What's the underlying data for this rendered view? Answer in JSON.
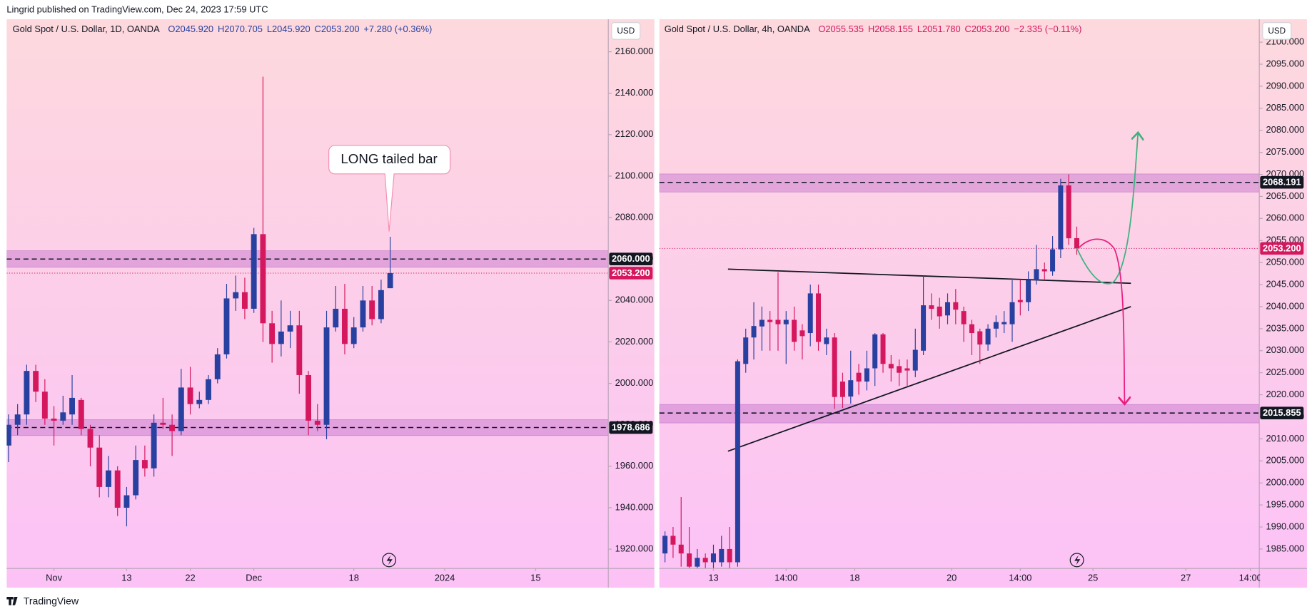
{
  "header": "Lingrid published on TradingView.com, Dec 24, 2023 17:59 UTC",
  "footer": "TradingView",
  "chart_data": [
    {
      "type": "candlestick",
      "title": "Gold Spot / U.S. Dollar, 1D, OANDA",
      "ohlc_text": [
        "O2045.920",
        "H2070.705",
        "L2045.920",
        "C2053.200",
        "+7.280 (+0.36%)"
      ],
      "currency": "USD",
      "up_color": "#2841a0",
      "down_color": "#d5175e",
      "open": [
        1970,
        1980,
        1985,
        2006,
        1996,
        1983,
        1982,
        1985,
        1992,
        1978,
        1969,
        1950,
        1958,
        1940,
        1946,
        1963,
        1959,
        1981,
        1980,
        1977,
        1998,
        1990,
        1992,
        2002,
        2014,
        2041,
        2044,
        2036,
        2072,
        2029,
        2019,
        2025,
        2028,
        2004,
        1982,
        1980,
        2027,
        2036,
        2019,
        2027,
        2040,
        2031,
        2045.92
      ],
      "high": [
        1985,
        1990,
        2009,
        2009,
        2002,
        1989,
        1994,
        2004,
        1993,
        1980,
        1975,
        1965,
        1960,
        1950,
        1970,
        1970,
        1985,
        1993,
        1985,
        2007,
        2008,
        1996,
        2004,
        2017,
        2048,
        2052,
        2051,
        2075,
        2148,
        2035,
        2040,
        2035,
        2035,
        2006,
        1990,
        2035,
        2047,
        2048,
        2032,
        2047,
        2047,
        2050,
        2070.705
      ],
      "low": [
        1962,
        1975,
        1980,
        1991,
        1980,
        1970,
        1980,
        1980,
        1975,
        1960,
        1945,
        1945,
        1936,
        1931,
        1944,
        1955,
        1955,
        1978,
        1965,
        1975,
        1985,
        1988,
        1990,
        2000,
        2012,
        2035,
        2031,
        2034,
        2020,
        2010,
        2013,
        2017,
        1995,
        1975,
        1977,
        1973,
        2025,
        2014,
        2017,
        2025,
        2028,
        2029,
        2045.92
      ],
      "close": [
        1980,
        1985,
        2006,
        1996,
        1983,
        1982,
        1986,
        1993,
        1978,
        1969,
        1950,
        1958,
        1940,
        1946,
        1963,
        1959,
        1981,
        1980,
        1977,
        1998,
        1990,
        1992,
        2002,
        2014,
        2041,
        2044,
        2036,
        2072,
        2029,
        2019,
        2025,
        2028,
        2004,
        1982,
        1980,
        2027,
        2036,
        2019,
        2027,
        2040,
        2031,
        2045,
        2053.2
      ],
      "xlim": [
        -0.2,
        66
      ],
      "xticks": [
        {
          "value": 5,
          "label": "Nov"
        },
        {
          "value": 13,
          "label": "13"
        },
        {
          "value": 20,
          "label": "22"
        },
        {
          "value": 27,
          "label": "Dec"
        },
        {
          "value": 38,
          "label": "18"
        },
        {
          "value": 48,
          "label": "2024"
        },
        {
          "value": 58,
          "label": "15"
        }
      ],
      "ylim": [
        1910.7,
        2175.7
      ],
      "yticks": [
        {
          "value": 1920,
          "label": "1920.000"
        },
        {
          "value": 1940,
          "label": "1940.000"
        },
        {
          "value": 1960,
          "label": "1960.000"
        },
        {
          "value": 1980,
          "label": "1980.000"
        },
        {
          "value": 2000,
          "label": "2000.000"
        },
        {
          "value": 2020,
          "label": "2020.000"
        },
        {
          "value": 2040,
          "label": "2040.000"
        },
        {
          "value": 2060,
          "label": "2060.000"
        },
        {
          "value": 2080,
          "label": "2080.000"
        },
        {
          "value": 2100,
          "label": "2100.000"
        },
        {
          "value": 2120,
          "label": "2120.000"
        },
        {
          "value": 2140,
          "label": "2140.000"
        },
        {
          "value": 2160,
          "label": "2160.000"
        }
      ],
      "zones": [
        [
          2056,
          2064
        ],
        [
          1974.8,
          1982.5
        ]
      ],
      "levels": [
        {
          "value": 2060,
          "label": "2060.000"
        },
        {
          "value": 1978.686,
          "label": "1978.686"
        }
      ],
      "last_price": {
        "value": 2053.2,
        "label": "2053.200"
      },
      "annotation": "LONG tailed bar"
    },
    {
      "type": "candlestick",
      "title": "Gold Spot / U.S. Dollar, 4h, OANDA",
      "ohlc_text": [
        "O2055.535",
        "H2058.155",
        "L2051.780",
        "C2053.200",
        "−2.335 (−0.11%)"
      ],
      "currency": "USD",
      "up_color": "#2841a0",
      "down_color": "#d5175e",
      "open": [
        1984,
        1988,
        1986,
        1984,
        1981,
        1983,
        1982,
        1982,
        1985,
        1982,
        2027,
        2033,
        2035.5,
        2037,
        2037,
        2036,
        2037,
        2034.6,
        2034,
        2043,
        2031.5,
        2033,
        2023,
        2019.6,
        2025,
        2023,
        2026,
        2033.7,
        2027,
        2026.5,
        2026,
        2025.5,
        2030,
        2040.3,
        2040,
        2038,
        2041,
        2039,
        2036,
        2034.4,
        2031.4,
        2035,
        2036,
        2036,
        2041.5,
        2041,
        2046,
        2048.5,
        2048,
        2053,
        2067.5,
        2055.535
      ],
      "high": [
        1989,
        1990,
        1996.8,
        1990,
        1985,
        1984,
        1986,
        1988,
        1990,
        2028,
        2035,
        2041,
        2040,
        2039,
        2047.8,
        2039,
        2040,
        2036,
        2045,
        2045,
        2035,
        2034,
        2025,
        2030,
        2027,
        2030,
        2034,
        2034,
        2029,
        2028,
        2028,
        2035,
        2047,
        2043,
        2042,
        2043,
        2044,
        2040,
        2037,
        2035,
        2036,
        2038,
        2039,
        2046,
        2046,
        2048,
        2054,
        2050,
        2056,
        2069,
        2070,
        2058.155
      ],
      "low": [
        1982,
        1983,
        1981,
        1979,
        1978,
        1979,
        1980,
        1981,
        1980,
        1981,
        2025,
        2028,
        2030,
        2030,
        2030,
        2027,
        2030,
        2028,
        2031,
        2030,
        2029,
        2016.8,
        2017,
        2018,
        2020,
        2021,
        2022,
        2025,
        2023,
        2022,
        2022,
        2024,
        2029,
        2037,
        2035,
        2036,
        2036,
        2032,
        2029,
        2027,
        2030,
        2033,
        2034,
        2032,
        2038,
        2039,
        2045,
        2046,
        2047,
        2051,
        2054,
        2051.78
      ],
      "close": [
        1988,
        1986,
        1984,
        1981,
        1983,
        1982,
        1984,
        1985,
        1982,
        2027.6,
        2033,
        2035.6,
        2037,
        2036.5,
        2036,
        2037,
        2032,
        2033.3,
        2043,
        2032,
        2033,
        2019.5,
        2019.5,
        2023.3,
        2023,
        2026,
        2033.7,
        2027,
        2026,
        2025,
        2025.5,
        2030.2,
        2040.3,
        2039.5,
        2037.8,
        2041,
        2039.3,
        2036,
        2034,
        2031.4,
        2035,
        2036.5,
        2036.5,
        2041,
        2041,
        2046,
        2048.5,
        2048,
        2053,
        2067.5,
        2055.5,
        2053.2
      ],
      "xlim": [
        -0.7,
        73.6
      ],
      "xticks": [
        {
          "value": 6,
          "label": "13"
        },
        {
          "value": 15,
          "label": "14:00"
        },
        {
          "value": 23.5,
          "label": "18"
        },
        {
          "value": 35.5,
          "label": "20"
        },
        {
          "value": 44,
          "label": "14:00"
        },
        {
          "value": 53,
          "label": "25"
        },
        {
          "value": 64.5,
          "label": "27"
        },
        {
          "value": 72.5,
          "label": "14:00"
        }
      ],
      "ylim": [
        1980.6,
        2105.2
      ],
      "yticks": [
        {
          "value": 1985,
          "label": "1985.000"
        },
        {
          "value": 1990,
          "label": "1990.000"
        },
        {
          "value": 1995,
          "label": "1995.000"
        },
        {
          "value": 2000,
          "label": "2000.000"
        },
        {
          "value": 2005,
          "label": "2005.000"
        },
        {
          "value": 2010,
          "label": "2010.000"
        },
        {
          "value": 2015,
          "label": "2015.000"
        },
        {
          "value": 2020,
          "label": "2020.000"
        },
        {
          "value": 2025,
          "label": "2025.000"
        },
        {
          "value": 2030,
          "label": "2030.000"
        },
        {
          "value": 2035,
          "label": "2035.000"
        },
        {
          "value": 2040,
          "label": "2040.000"
        },
        {
          "value": 2045,
          "label": "2045.000"
        },
        {
          "value": 2050,
          "label": "2050.000"
        },
        {
          "value": 2055,
          "label": "2055.000"
        },
        {
          "value": 2060,
          "label": "2060.000"
        },
        {
          "value": 2065,
          "label": "2065.000"
        },
        {
          "value": 2070,
          "label": "2070.000"
        },
        {
          "value": 2075,
          "label": "2075.000"
        },
        {
          "value": 2080,
          "label": "2080.000"
        },
        {
          "value": 2085,
          "label": "2085.000"
        },
        {
          "value": 2090,
          "label": "2090.000"
        },
        {
          "value": 2095,
          "label": "2095.000"
        },
        {
          "value": 2100,
          "label": "2100.000"
        }
      ],
      "zones": [
        [
          2066,
          2070.1
        ],
        [
          2013.6,
          2017.8
        ]
      ],
      "levels": [
        {
          "value": 2068.191,
          "label": "2068.191"
        },
        {
          "value": 2015.855,
          "label": "2015.855"
        }
      ],
      "last_price": {
        "value": 2053.2,
        "label": "2053.200"
      },
      "trendlines": [
        {
          "x": [
            7.8,
            57.7
          ],
          "y": [
            2048.5,
            2045.3
          ]
        },
        {
          "x": [
            7.8,
            57.7
          ],
          "y": [
            2007.2,
            2040.0
          ]
        }
      ]
    }
  ]
}
